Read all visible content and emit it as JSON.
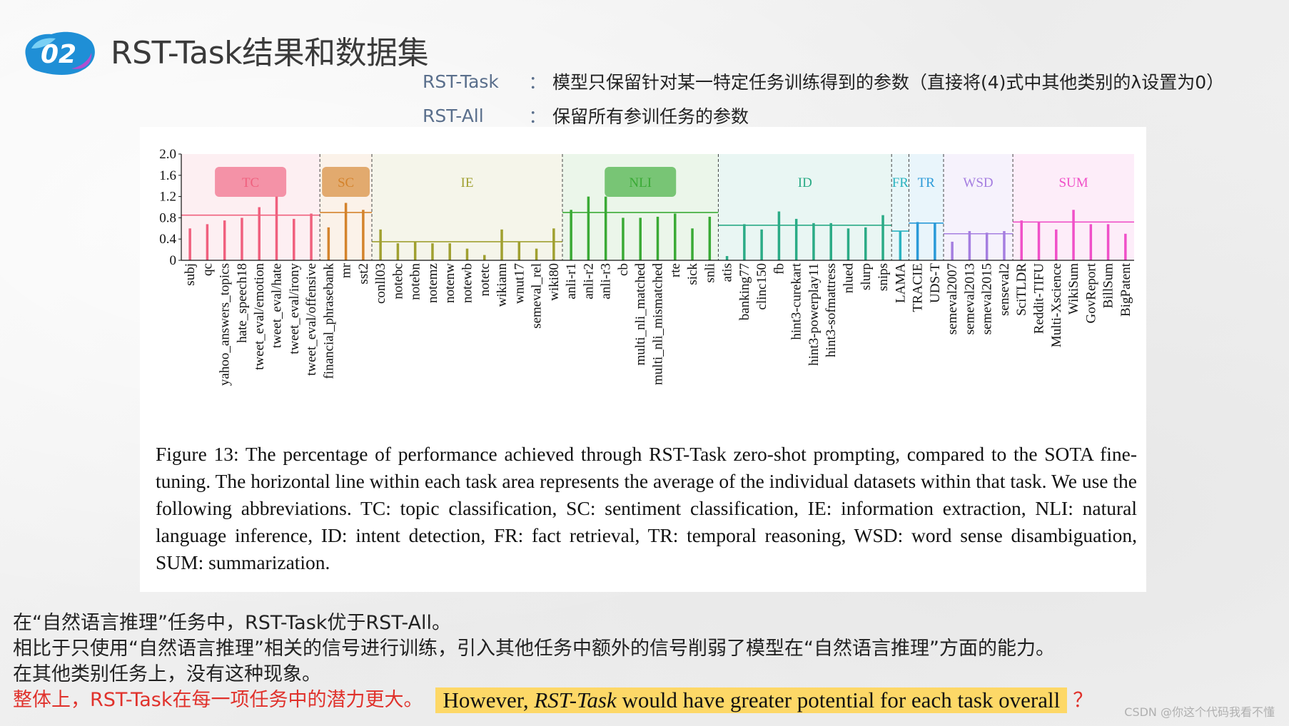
{
  "slide": {
    "badge_number": "02",
    "title": "RST-Task结果和数据集"
  },
  "definitions": [
    {
      "term": "RST-Task",
      "colon": "：",
      "text": "模型只保留针对某一特定任务训练得到的参数（直接将(4)式中其他类别的λ设置为0）"
    },
    {
      "term": "RST-All",
      "colon": "：",
      "text": "保留所有参训任务的参数"
    }
  ],
  "colors": {
    "TC": "#f0607e",
    "SC": "#d4832c",
    "IE": "#a0a030",
    "NLI": "#3aaa35",
    "ID": "#2bab86",
    "FR": "#2bb3c0",
    "TR": "#2b9ad8",
    "WSD": "#a57ee0",
    "SUM": "#f050c8",
    "highlight": "#fdd867",
    "red": "#e0312b"
  },
  "chart_data": {
    "type": "bar",
    "title": "",
    "ylim": [
      0,
      2.0
    ],
    "y_ticks": [
      "2.0",
      "1.6",
      "1.2",
      "0.8",
      "0.4",
      "0"
    ],
    "groups": [
      {
        "name": "TC",
        "mean": 0.85,
        "label_boxed": true,
        "datasets": [
          {
            "name": "subj",
            "value": 0.6
          },
          {
            "name": "qc",
            "value": 0.68
          },
          {
            "name": "yahoo_answers_topics",
            "value": 0.75
          },
          {
            "name": "hate_speech18",
            "value": 0.8
          },
          {
            "name": "tweet_eval/emotion",
            "value": 1.0
          },
          {
            "name": "tweet_eval/hate",
            "value": 1.2
          },
          {
            "name": "tweet_eval/irony",
            "value": 0.78
          },
          {
            "name": "tweet_eval/offensive",
            "value": 0.88
          }
        ]
      },
      {
        "name": "SC",
        "mean": 0.9,
        "label_boxed": true,
        "datasets": [
          {
            "name": "financial_phrasebank",
            "value": 0.62
          },
          {
            "name": "mr",
            "value": 1.08
          },
          {
            "name": "sst2",
            "value": 0.95
          }
        ]
      },
      {
        "name": "IE",
        "mean": 0.35,
        "label_boxed": false,
        "datasets": [
          {
            "name": "conll03",
            "value": 0.58
          },
          {
            "name": "notebc",
            "value": 0.32
          },
          {
            "name": "notebn",
            "value": 0.35
          },
          {
            "name": "notemz",
            "value": 0.32
          },
          {
            "name": "notenw",
            "value": 0.32
          },
          {
            "name": "notewb",
            "value": 0.22
          },
          {
            "name": "notetc",
            "value": 0.1
          },
          {
            "name": "wikiann",
            "value": 0.58
          },
          {
            "name": "wnut17",
            "value": 0.35
          },
          {
            "name": "semeval_rel",
            "value": 0.22
          },
          {
            "name": "wiki80",
            "value": 0.6
          }
        ]
      },
      {
        "name": "NLI",
        "mean": 0.9,
        "label_boxed": true,
        "datasets": [
          {
            "name": "anli-r1",
            "value": 0.95
          },
          {
            "name": "anli-r2",
            "value": 1.2
          },
          {
            "name": "anli-r3",
            "value": 1.2
          },
          {
            "name": "cb",
            "value": 0.8
          },
          {
            "name": "multi_nli_matched",
            "value": 0.8
          },
          {
            "name": "multi_nli_mismatched",
            "value": 0.82
          },
          {
            "name": "rte",
            "value": 0.88
          },
          {
            "name": "sick",
            "value": 0.6
          },
          {
            "name": "snli",
            "value": 0.82
          }
        ]
      },
      {
        "name": "ID",
        "mean": 0.66,
        "label_boxed": false,
        "datasets": [
          {
            "name": "atis",
            "value": 0.08
          },
          {
            "name": "banking77",
            "value": 0.68
          },
          {
            "name": "clinc150",
            "value": 0.58
          },
          {
            "name": "fb",
            "value": 0.92
          },
          {
            "name": "hint3-curekart",
            "value": 0.78
          },
          {
            "name": "hint3-powerplay11",
            "value": 0.7
          },
          {
            "name": "hint3-sofmattress",
            "value": 0.7
          },
          {
            "name": "nlued",
            "value": 0.6
          },
          {
            "name": "slurp",
            "value": 0.62
          },
          {
            "name": "snips",
            "value": 0.85
          }
        ]
      },
      {
        "name": "FR",
        "mean": 0.55,
        "label_boxed": false,
        "datasets": [
          {
            "name": "LAMA",
            "value": 0.55
          }
        ]
      },
      {
        "name": "TR",
        "mean": 0.7,
        "label_boxed": false,
        "datasets": [
          {
            "name": "TRACIE",
            "value": 0.72
          },
          {
            "name": "UDS-T",
            "value": 0.7
          }
        ]
      },
      {
        "name": "WSD",
        "mean": 0.5,
        "label_boxed": false,
        "datasets": [
          {
            "name": "semeval2007",
            "value": 0.35
          },
          {
            "name": "semeval2013",
            "value": 0.55
          },
          {
            "name": "semeval2015",
            "value": 0.52
          },
          {
            "name": "senseval2",
            "value": 0.55
          }
        ]
      },
      {
        "name": "SUM",
        "mean": 0.72,
        "label_boxed": false,
        "datasets": [
          {
            "name": "SciTLDR",
            "value": 0.75
          },
          {
            "name": "Reddit-TIFU",
            "value": 0.72
          },
          {
            "name": "Multi-Xscience",
            "value": 0.58
          },
          {
            "name": "WikiSum",
            "value": 0.95
          },
          {
            "name": "GovReport",
            "value": 0.68
          },
          {
            "name": "BillSum",
            "value": 0.68
          },
          {
            "name": "BigPatent",
            "value": 0.5
          }
        ]
      }
    ],
    "caption": "Figure 13: The percentage of performance achieved through RST-Task zero-shot prompting, compared to the SOTA fine-tuning. The horizontal line within each task area represents the average of the individual datasets within that task. We use the following abbreviations. TC: topic classification, SC: sentiment classification, IE: information extraction, NLI: natural language inference, ID: intent detection, FR: fact retrieval, TR: temporal reasoning, WSD: word sense disambiguation, SUM: summarization."
  },
  "bottom": {
    "line1": "在“自然语言推理”任务中，RST-Task优于RST-All。",
    "line2": "相比于只使用“自然语言推理”相关的信号进行训练，引入其他任务中额外的信号削弱了模型在“自然语言推理”方面的能力。",
    "line3": "在其他类别任务上，没有这种现象。",
    "line4_red": "整体上，RST-Task在每一项任务中的潜力更大。",
    "highlight_pre": "However, ",
    "highlight_italic": "RST-Task",
    "highlight_post": " would have greater potential for each task overall",
    "question_mark": "？"
  },
  "watermark": "CSDN @你这个代码我看不懂"
}
